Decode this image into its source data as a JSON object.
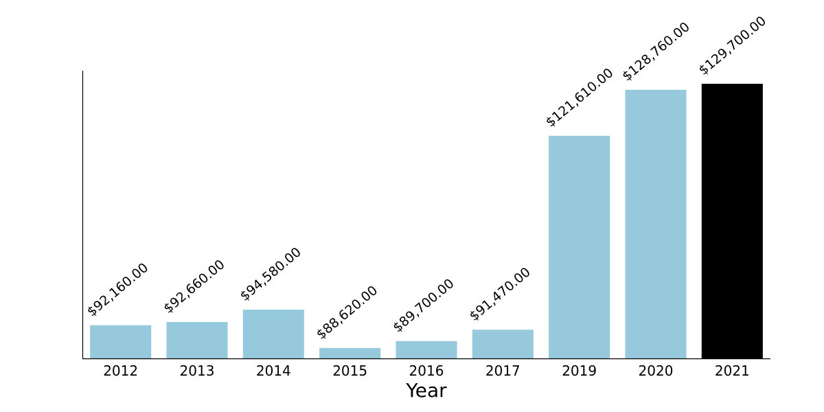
{
  "chart_data": {
    "type": "bar",
    "title": "",
    "xlabel": "Year",
    "ylabel": "",
    "categories": [
      "2012",
      "2013",
      "2014",
      "2015",
      "2016",
      "2017",
      "2019",
      "2020",
      "2021"
    ],
    "values": [
      92160,
      92660,
      94580,
      88620,
      89700,
      91470,
      121610,
      128760,
      129700
    ],
    "value_labels": [
      "$92,160.00",
      "$92,660.00",
      "$94,580.00",
      "$88,620.00",
      "$89,700.00",
      "$91,470.00",
      "$121,610.00",
      "$128,760.00",
      "$129,700.00"
    ],
    "ylim": [
      87000,
      129700
    ],
    "grid": false,
    "legend": "none",
    "colors": {
      "default_bar": "#96c9dc",
      "highlight_bar": "#000000",
      "axis": "#000000"
    },
    "highlight_index": 8
  }
}
